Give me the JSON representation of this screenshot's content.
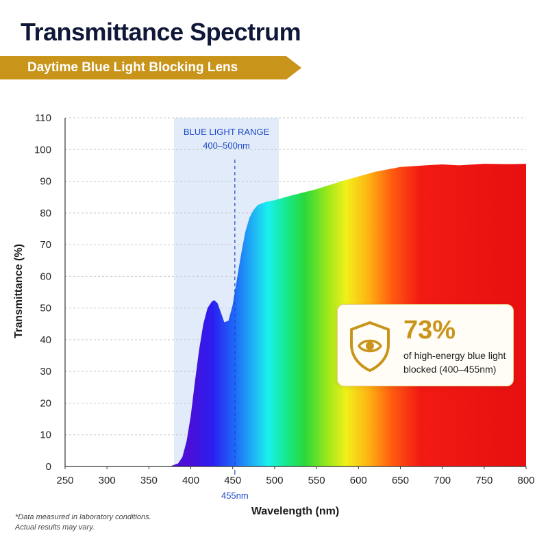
{
  "header": {
    "title": "Transmittance Spectrum",
    "subtitle": "Daytime Blue Light Blocking Lens"
  },
  "colors": {
    "banner": "#c9941a",
    "band_fill": "#dce8f8",
    "marker": "#1f49c9",
    "accent": "#c9941a"
  },
  "chart_data": {
    "type": "area",
    "title": "Transmittance Spectrum",
    "subtitle": "Daytime Blue Light Blocking Lens",
    "xlabel": "Wavelength (nm)",
    "ylabel": "Transmittance (%)",
    "xlim": [
      250,
      800
    ],
    "ylim": [
      0,
      110
    ],
    "x_ticks": [
      250,
      300,
      350,
      400,
      450,
      500,
      550,
      600,
      650,
      700,
      750,
      800
    ],
    "y_ticks": [
      0,
      10,
      20,
      30,
      40,
      50,
      60,
      70,
      80,
      90,
      100,
      110
    ],
    "grid": true,
    "fill": "visible spectrum gradient",
    "series": [
      {
        "x": [
          250,
          300,
          350,
          375,
          385,
          390,
          395,
          400,
          405,
          410,
          415,
          420,
          425,
          428,
          432,
          436,
          440,
          445,
          450,
          455,
          460,
          465,
          470,
          475,
          480,
          490,
          500,
          520,
          550,
          580,
          600,
          620,
          650,
          680,
          700,
          720,
          750,
          780,
          800
        ],
        "y": [
          0,
          0,
          0,
          0,
          1,
          3,
          8,
          16,
          27,
          37,
          45,
          50,
          52,
          52.5,
          51.5,
          48.5,
          45.5,
          46,
          51,
          59,
          67,
          74,
          78.5,
          81,
          82.5,
          83.5,
          84,
          85.5,
          87.5,
          90,
          91.5,
          93,
          94.5,
          95,
          95.3,
          95,
          95.5,
          95.4,
          95.5
        ]
      }
    ],
    "shaded_band": {
      "x_range": [
        380,
        505
      ],
      "label_line1": "BLUE LIGHT RANGE",
      "label_line2": "400–500nm"
    },
    "marker": {
      "x": 455,
      "label": "455nm"
    }
  },
  "callout": {
    "icon": "shield-eye-icon",
    "value": "73%",
    "text": "of high-energy blue light blocked (400–455nm)"
  },
  "footnote": {
    "line1": "*Data measured in laboratory conditions.",
    "line2": "Actual results may vary."
  }
}
